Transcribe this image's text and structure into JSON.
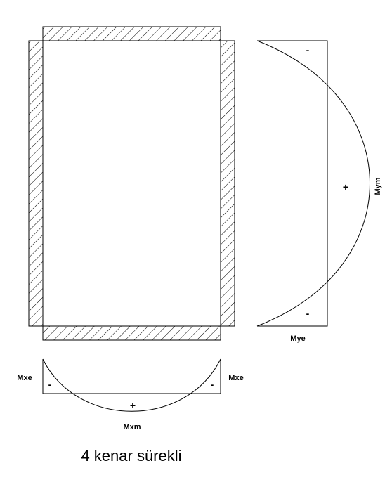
{
  "labels": {
    "mye": "Mye",
    "mym": "Mym",
    "mxe_left": "Mxe",
    "mxe_right": "Mxe",
    "mxm": "Mxm"
  },
  "signs": {
    "y_top": "-",
    "y_middle": "+",
    "y_bottom": "-",
    "x_left": "-",
    "x_middle": "+",
    "x_right": "-"
  },
  "caption": "4 kenar sürekli"
}
